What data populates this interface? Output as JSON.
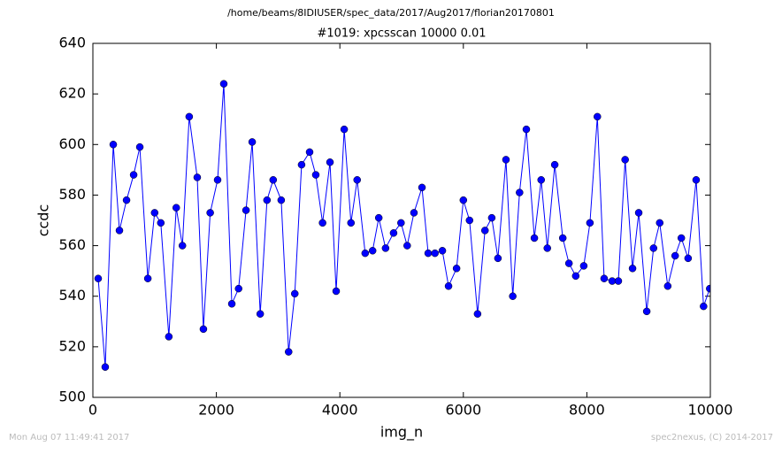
{
  "chart_data": {
    "type": "line",
    "subtitle": "/home/beams/8IDIUSER/spec_data/2017/Aug2017/florian20170801",
    "title": "#1019: xpcsscan 10000 0.01",
    "x_label": "img_n",
    "y_label": "ccdc",
    "annotations": [
      "Mon Aug 07 11:49:41 2017",
      "spec2nexus, (C) 2014-2017"
    ],
    "x": [
      86,
      200,
      330,
      430,
      545,
      660,
      760,
      890,
      1000,
      1100,
      1230,
      1350,
      1450,
      1560,
      1690,
      1790,
      1900,
      2020,
      2120,
      2250,
      2360,
      2480,
      2580,
      2710,
      2820,
      2920,
      3050,
      3170,
      3270,
      3380,
      3510,
      3610,
      3720,
      3840,
      3940,
      4070,
      4180,
      4280,
      4410,
      4530,
      4630,
      4740,
      4870,
      4990,
      5090,
      5200,
      5330,
      5430,
      5540,
      5660,
      5760,
      5890,
      6000,
      6100,
      6230,
      6350,
      6460,
      6560,
      6690,
      6800,
      6910,
      7020,
      7150,
      7260,
      7360,
      7480,
      7610,
      7710,
      7820,
      7950,
      8050,
      8170,
      8280,
      8410,
      8510,
      8620,
      8740,
      8840,
      8970,
      9080,
      9180,
      9310,
      9430,
      9530,
      9640,
      9770,
      9890,
      9990
    ],
    "series": [
      {
        "color": "#0000ff",
        "values": [
          547,
          512,
          600,
          566,
          578,
          588,
          599,
          547,
          573,
          569,
          524,
          575,
          560,
          611,
          587,
          527,
          573,
          586,
          624,
          537,
          543,
          574,
          601,
          533,
          578,
          586,
          578,
          518,
          541,
          592,
          597,
          588,
          569,
          593,
          542,
          606,
          569,
          586,
          557,
          558,
          571,
          559,
          565,
          569,
          560,
          573,
          583,
          557,
          557,
          558,
          544,
          551,
          578,
          570,
          533,
          566,
          571,
          555,
          594,
          540,
          581,
          606,
          563,
          586,
          559,
          592,
          563,
          553,
          548,
          552,
          569,
          611,
          547,
          546,
          546,
          594,
          551,
          573,
          534,
          559,
          569,
          544,
          556,
          563,
          555,
          586,
          536,
          543
        ]
      }
    ],
    "xlim": [
      0,
      10000
    ],
    "xticks": [
      0,
      2000,
      4000,
      6000,
      8000,
      10000
    ],
    "ylim": [
      500,
      640
    ],
    "yticks": [
      500,
      520,
      540,
      560,
      580,
      600,
      620,
      640
    ]
  }
}
